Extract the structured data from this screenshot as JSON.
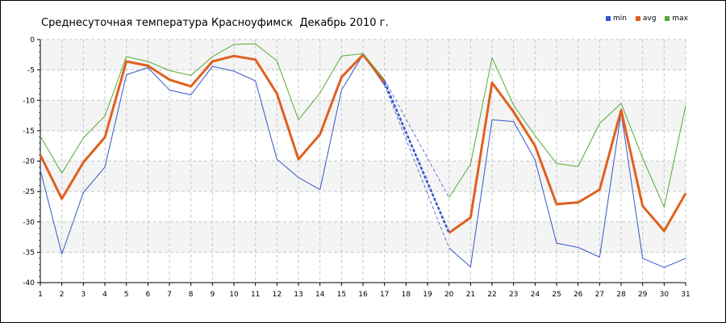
{
  "chart_data": {
    "type": "line",
    "title": "Среднесуточная температура Красноуфимск  Декабрь 2010 г.",
    "xlabel": "",
    "ylabel": "",
    "x": [
      1,
      2,
      3,
      4,
      5,
      6,
      7,
      8,
      9,
      10,
      11,
      12,
      13,
      14,
      15,
      16,
      17,
      18,
      19,
      20,
      21,
      22,
      23,
      24,
      25,
      26,
      27,
      28,
      29,
      30,
      31
    ],
    "xlim": [
      1,
      31
    ],
    "ylim": [
      -40,
      0
    ],
    "yticks": [
      0,
      -5,
      -10,
      -15,
      -20,
      -25,
      -30,
      -35,
      -40
    ],
    "grid": true,
    "legend": "top-right",
    "gap": {
      "from_day": 17,
      "to_day": 20,
      "style": "dashed"
    },
    "series": [
      {
        "name": "min",
        "color": "#3355cc",
        "values": [
          -21.5,
          -35.3,
          -25.2,
          -21.0,
          -5.8,
          -4.6,
          -8.3,
          -9.1,
          -4.4,
          -5.2,
          -6.8,
          -19.7,
          -22.7,
          -24.7,
          -8.3,
          -2.5,
          -7.5,
          null,
          null,
          -34.3,
          -37.4,
          -13.2,
          -13.5,
          -19.8,
          -33.5,
          -34.2,
          -35.8,
          -12.0,
          -36.0,
          -37.5,
          -36.0
        ]
      },
      {
        "name": "avg",
        "color": "#e06020",
        "values": [
          -19.0,
          -26.2,
          -20.2,
          -16.1,
          -3.6,
          -4.3,
          -6.6,
          -7.7,
          -3.6,
          -2.7,
          -3.3,
          -8.9,
          -19.7,
          -15.6,
          -6.2,
          -2.5,
          -7.0,
          null,
          null,
          -31.8,
          -29.3,
          -7.1,
          -11.9,
          -17.5,
          -27.1,
          -26.8,
          -24.7,
          -11.6,
          -27.4,
          -31.5,
          -25.3
        ]
      },
      {
        "name": "max",
        "color": "#55aa33",
        "values": [
          -15.9,
          -22.0,
          -16.2,
          -12.6,
          -2.8,
          -3.6,
          -5.1,
          -5.9,
          -2.8,
          -0.8,
          -0.7,
          -3.5,
          -13.2,
          -8.8,
          -2.7,
          -2.3,
          -6.6,
          null,
          null,
          -26.0,
          -20.5,
          -3.0,
          -10.8,
          -15.8,
          -20.4,
          -20.9,
          -13.8,
          -10.5,
          -19.5,
          -27.6,
          -10.9
        ]
      }
    ]
  }
}
